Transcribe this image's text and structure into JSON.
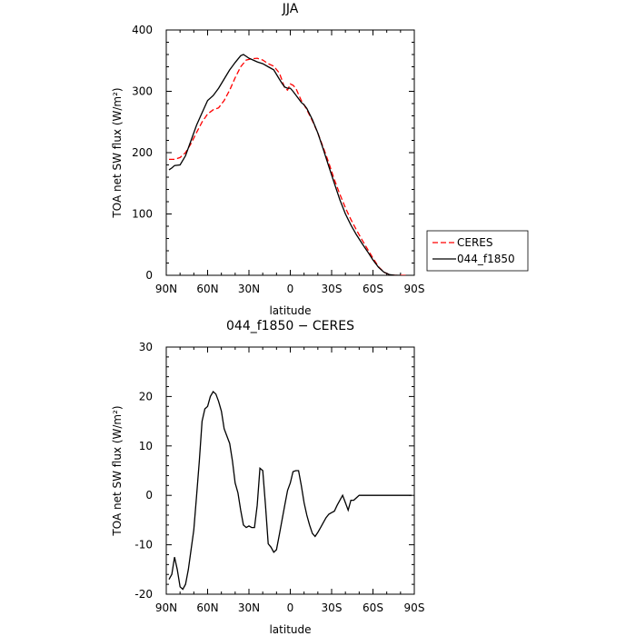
{
  "chart_data": [
    {
      "type": "line",
      "title": "JJA",
      "xlabel": "latitude",
      "ylabel": "TOA net SW flux (W/m²)",
      "xlim": [
        90,
        -90
      ],
      "ylim": [
        0,
        400
      ],
      "xticks": [
        90,
        60,
        30,
        0,
        -30,
        -60,
        -90
      ],
      "xtick_labels": [
        "90N",
        "60N",
        "30N",
        "0",
        "30S",
        "60S",
        "90S"
      ],
      "yticks": [
        0,
        100,
        200,
        300,
        400
      ],
      "legend_position": "right",
      "series": [
        {
          "name": "CERES",
          "color": "#ff0000",
          "dash": "dashed",
          "x": [
            88,
            84,
            80,
            76,
            72,
            68,
            64,
            60,
            56,
            52,
            48,
            44,
            40,
            36,
            32,
            28,
            24,
            20,
            16,
            12,
            8,
            6,
            4,
            2,
            0,
            -2,
            -4,
            -6,
            -8,
            -10,
            -12,
            -16,
            -20,
            -24,
            -28,
            -32,
            -36,
            -40,
            -44,
            -48,
            -52,
            -56,
            -60,
            -64,
            -68,
            -72,
            -76,
            -80,
            -84
          ],
          "values": [
            189,
            189,
            192,
            200,
            215,
            233,
            250,
            263,
            270,
            273,
            285,
            302,
            322,
            340,
            351,
            353,
            354,
            351,
            345,
            341,
            330,
            318,
            305,
            302,
            312,
            310,
            305,
            295,
            285,
            278,
            270,
            252,
            232,
            208,
            183,
            156,
            132,
            110,
            91,
            74,
            58,
            43,
            28,
            14,
            5,
            1,
            0,
            0,
            0
          ]
        },
        {
          "name": "044_f1850",
          "color": "#000000",
          "dash": "solid",
          "x": [
            88,
            86,
            84,
            80,
            76,
            72,
            68,
            64,
            60,
            56,
            52,
            48,
            44,
            40,
            36,
            34,
            32,
            30,
            28,
            24,
            20,
            16,
            12,
            8,
            6,
            4,
            2,
            0,
            -2,
            -4,
            -6,
            -8,
            -10,
            -12,
            -16,
            -20,
            -24,
            -28,
            -32,
            -36,
            -40,
            -44,
            -48,
            -52,
            -56,
            -60,
            -64,
            -68,
            -72,
            -76,
            -80
          ],
          "values": [
            172,
            175,
            179,
            180,
            195,
            220,
            245,
            265,
            285,
            293,
            305,
            320,
            335,
            347,
            358,
            360,
            357,
            354,
            352,
            348,
            345,
            340,
            335,
            320,
            313,
            307,
            305,
            305,
            300,
            294,
            288,
            282,
            278,
            272,
            254,
            232,
            205,
            177,
            150,
            123,
            100,
            82,
            66,
            52,
            39,
            25,
            13,
            5,
            1,
            0,
            0
          ]
        }
      ]
    },
    {
      "type": "line",
      "title": "044_f1850 − CERES",
      "xlabel": "latitude",
      "ylabel": "TOA net SW flux (W/m²)",
      "xlim": [
        90,
        -90
      ],
      "ylim": [
        -20,
        30
      ],
      "xticks": [
        90,
        60,
        30,
        0,
        -30,
        -60,
        -90
      ],
      "xtick_labels": [
        "90N",
        "60N",
        "30N",
        "0",
        "30S",
        "60S",
        "90S"
      ],
      "yticks": [
        -20,
        -10,
        0,
        10,
        20,
        30
      ],
      "series": [
        {
          "color": "#000000",
          "dash": "solid",
          "x": [
            88,
            86,
            84,
            82,
            80,
            78,
            76,
            74,
            72,
            70,
            68,
            66,
            64,
            62,
            60,
            58,
            56,
            54,
            52,
            50,
            48,
            46,
            44,
            42,
            40,
            38,
            36,
            34,
            32,
            30,
            28,
            26,
            24,
            22,
            20,
            18,
            16,
            14,
            12,
            10,
            8,
            6,
            4,
            2,
            0,
            -2,
            -4,
            -6,
            -8,
            -10,
            -12,
            -14,
            -16,
            -18,
            -20,
            -22,
            -24,
            -26,
            -28,
            -30,
            -32,
            -34,
            -36,
            -38,
            -40,
            -42,
            -44,
            -46,
            -48,
            -50,
            -52,
            -54,
            -56,
            -58,
            -60,
            -62,
            -64,
            -66,
            -68,
            -70,
            -72,
            -74,
            -76,
            -78,
            -80,
            -82,
            -84,
            -86,
            -88
          ],
          "values": [
            -17,
            -16,
            -12.5,
            -15,
            -18.5,
            -19,
            -18,
            -15,
            -11,
            -7,
            0,
            7,
            15,
            17.5,
            18,
            20,
            21,
            20.5,
            19,
            17,
            13.5,
            12,
            10.5,
            7,
            2.5,
            0.5,
            -3,
            -6,
            -6.5,
            -6.2,
            -6.5,
            -6.5,
            -2,
            5.5,
            5,
            -2,
            -9.8,
            -10.5,
            -11.5,
            -11,
            -8,
            -5,
            -2,
            1,
            2.5,
            4.8,
            5,
            5,
            2,
            -1.5,
            -4,
            -6,
            -7.7,
            -8.3,
            -7.5,
            -6.5,
            -5.5,
            -4.5,
            -3.8,
            -3.5,
            -3.2,
            -2,
            -1,
            0,
            -1.5,
            -3,
            -1,
            -1,
            -0.5,
            0,
            0,
            0,
            0,
            0,
            0,
            0,
            0,
            0,
            0,
            0,
            0,
            0,
            0,
            0,
            0,
            0,
            0,
            0,
            0
          ]
        }
      ]
    }
  ]
}
